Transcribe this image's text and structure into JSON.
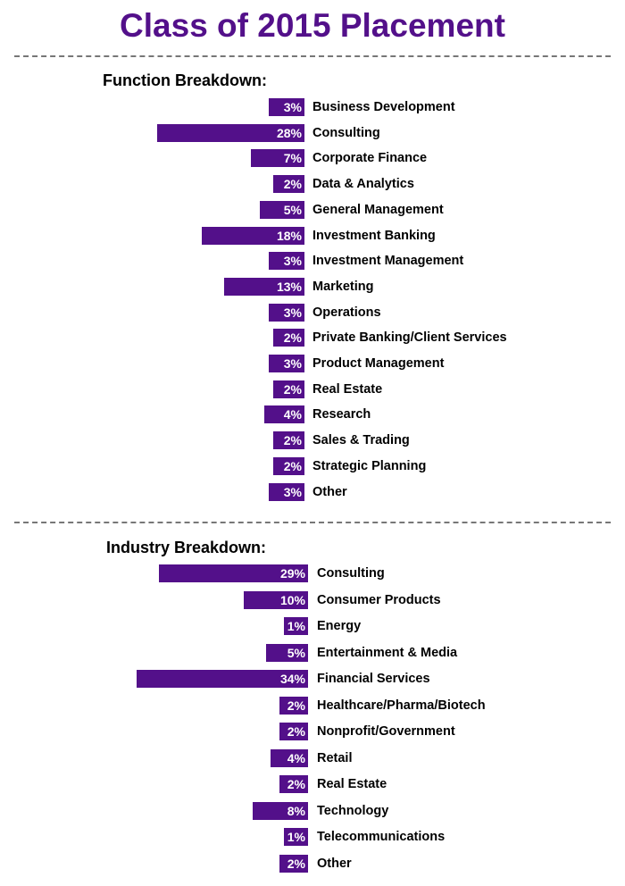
{
  "title": "Class of 2015 Placement",
  "colors": {
    "bar": "#53108a",
    "title": "#53108a"
  },
  "chart_data": [
    {
      "type": "bar",
      "orientation": "horizontal",
      "title": "Function Breakdown:",
      "unit": "%",
      "categories": [
        "Business Development",
        "Consulting",
        "Corporate Finance",
        "Data & Analytics",
        "General Management",
        "Investment Banking",
        "Investment Management",
        "Marketing",
        "Operations",
        "Private Banking/Client Services",
        "Product Management",
        "Real Estate",
        "Research",
        "Sales & Trading",
        "Strategic Planning",
        "Other"
      ],
      "values": [
        3,
        28,
        7,
        2,
        5,
        18,
        3,
        13,
        3,
        2,
        3,
        2,
        4,
        2,
        2,
        3
      ]
    },
    {
      "type": "bar",
      "orientation": "horizontal",
      "title": "Industry Breakdown:",
      "unit": "%",
      "categories": [
        "Consulting",
        "Consumer Products",
        "Energy",
        "Entertainment & Media",
        "Financial Services",
        "Healthcare/Pharma/Biotech",
        "Nonprofit/Government",
        "Retail",
        "Real Estate",
        "Technology",
        "Telecommunications",
        "Other"
      ],
      "values": [
        29,
        10,
        1,
        5,
        34,
        2,
        2,
        4,
        2,
        8,
        1,
        2
      ]
    }
  ]
}
